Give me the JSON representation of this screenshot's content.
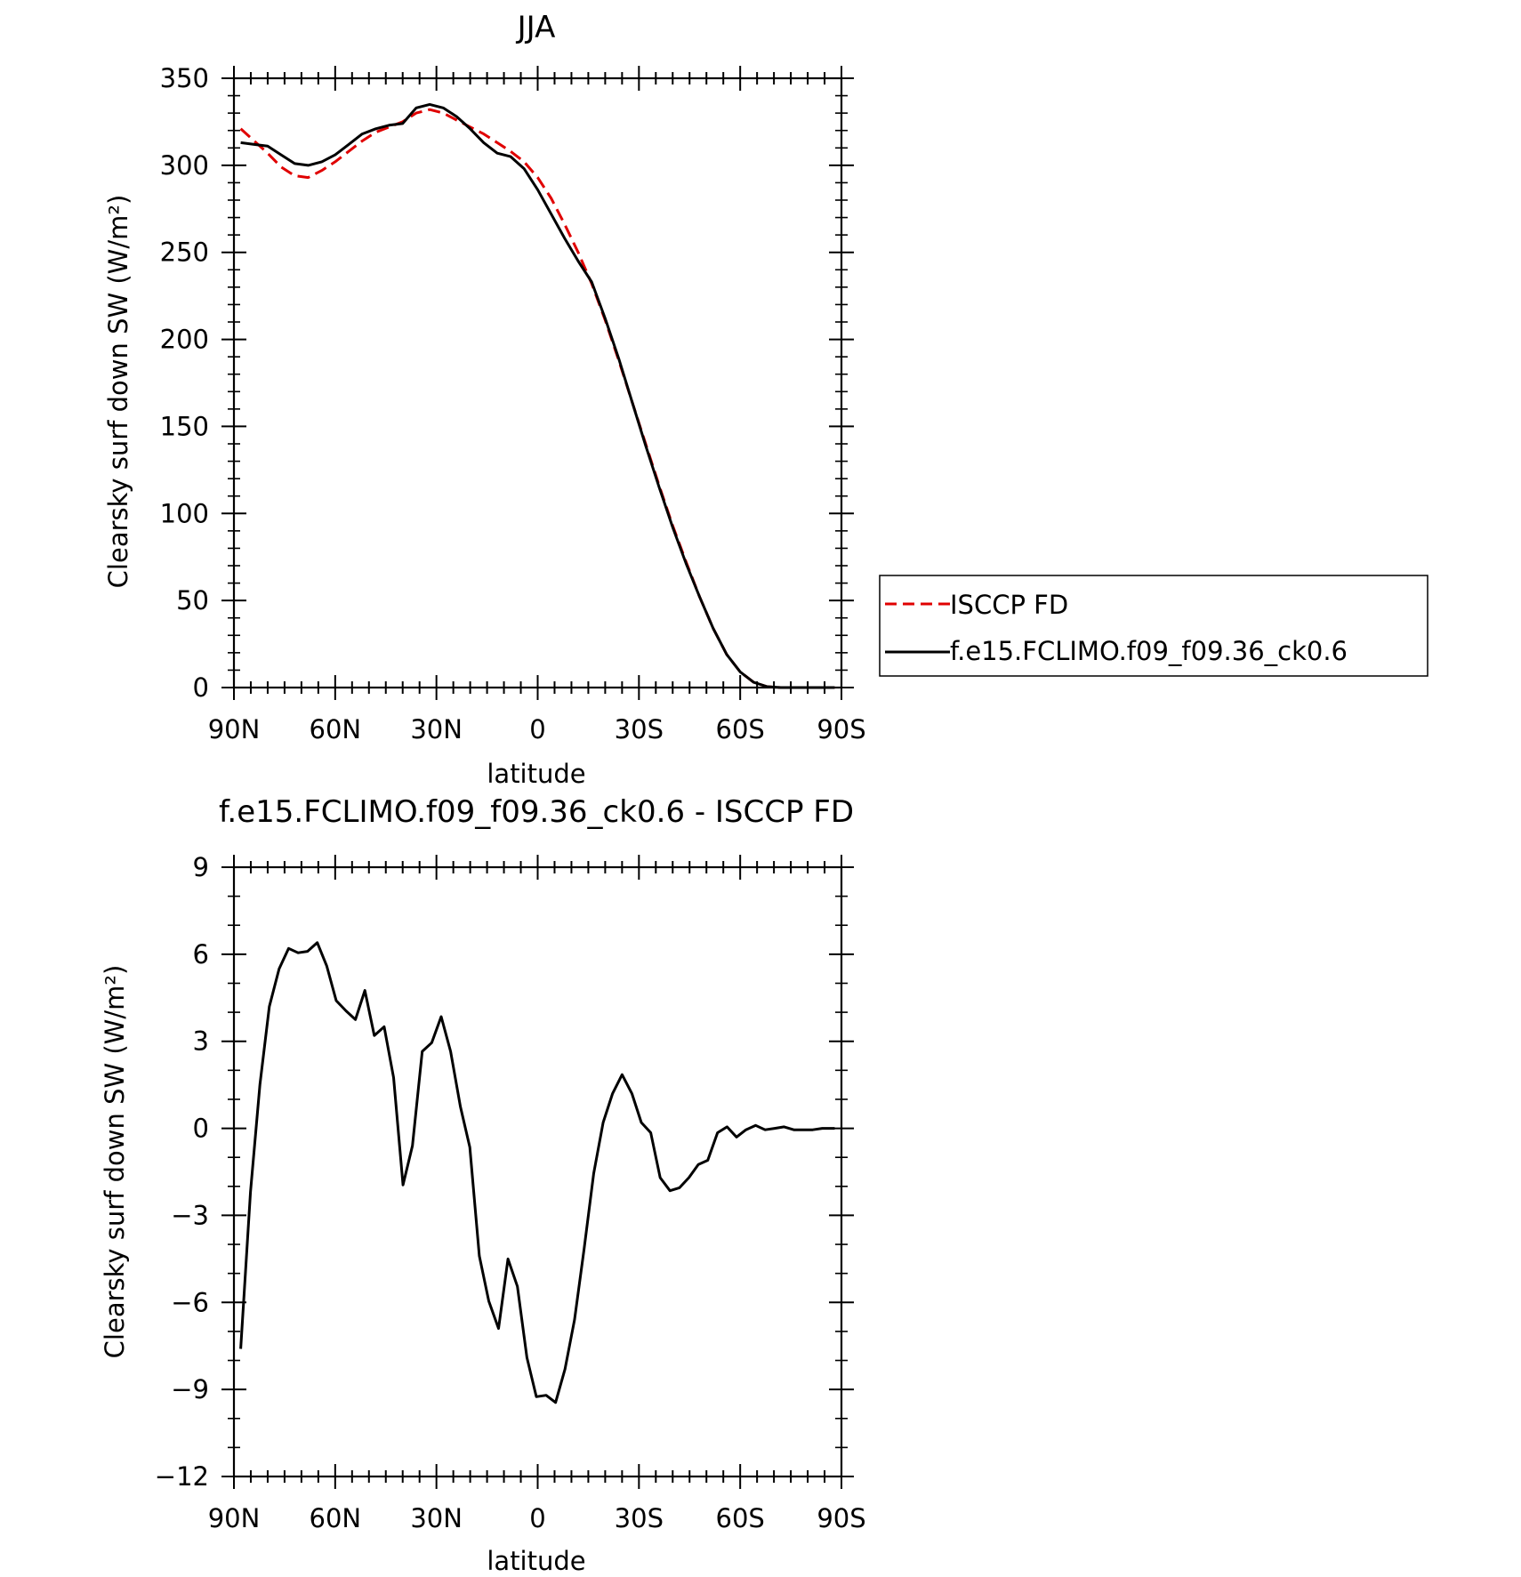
{
  "chart_data": [
    {
      "type": "line",
      "title": "JJA",
      "xlabel": "latitude",
      "ylabel": "Clearsky surf down SW (W/m²)",
      "xlim": [
        90,
        -90
      ],
      "ylim": [
        0,
        350
      ],
      "x_tick_labels": [
        "90N",
        "60N",
        "30N",
        "0",
        "30S",
        "60S",
        "90S"
      ],
      "x_tick_values": [
        90,
        60,
        30,
        0,
        -30,
        -60,
        -90
      ],
      "y_tick_values": [
        0,
        50,
        100,
        150,
        200,
        250,
        300,
        350
      ],
      "legend": "right",
      "series": [
        {
          "name": "ISCCP FD",
          "color": "#e00000",
          "dash": true,
          "points": [
            [
              88,
              321
            ],
            [
              84,
              314
            ],
            [
              80,
              307
            ],
            [
              76,
              299
            ],
            [
              72,
              294
            ],
            [
              68,
              293
            ],
            [
              64,
              297
            ],
            [
              60,
              302
            ],
            [
              56,
              308
            ],
            [
              52,
              314
            ],
            [
              48,
              319
            ],
            [
              44,
              322
            ],
            [
              40,
              325
            ],
            [
              36,
              330
            ],
            [
              32,
              332
            ],
            [
              28,
              330
            ],
            [
              24,
              326
            ],
            [
              20,
              322
            ],
            [
              16,
              318
            ],
            [
              12,
              313
            ],
            [
              8,
              308
            ],
            [
              4,
              302
            ],
            [
              0,
              293
            ],
            [
              -4,
              281
            ],
            [
              -8,
              266
            ],
            [
              -12,
              250
            ],
            [
              -16,
              232
            ],
            [
              -20,
              211
            ],
            [
              -24,
              188
            ],
            [
              -28,
              164
            ],
            [
              -32,
              140
            ],
            [
              -36,
              116
            ],
            [
              -40,
              93
            ],
            [
              -44,
              72
            ],
            [
              -48,
              52
            ],
            [
              -52,
              34
            ],
            [
              -56,
              19
            ],
            [
              -60,
              9
            ],
            [
              -64,
              3
            ],
            [
              -68,
              0.5
            ],
            [
              -72,
              0
            ],
            [
              -76,
              0
            ],
            [
              -80,
              0
            ],
            [
              -84,
              0
            ],
            [
              -88,
              0
            ]
          ]
        },
        {
          "name": "f.e15.FCLIMO.f09_f09.36_ck0.6",
          "color": "#000000",
          "dash": false,
          "points": [
            [
              88,
              313
            ],
            [
              84,
              312
            ],
            [
              80,
              311
            ],
            [
              76,
              306
            ],
            [
              72,
              301
            ],
            [
              68,
              300
            ],
            [
              64,
              302
            ],
            [
              60,
              306
            ],
            [
              56,
              312
            ],
            [
              52,
              318
            ],
            [
              48,
              321
            ],
            [
              44,
              323
            ],
            [
              40,
              324
            ],
            [
              36,
              333
            ],
            [
              32,
              335
            ],
            [
              28,
              333
            ],
            [
              24,
              328
            ],
            [
              20,
              321
            ],
            [
              16,
              313
            ],
            [
              12,
              307
            ],
            [
              8,
              305
            ],
            [
              4,
              298
            ],
            [
              0,
              286
            ],
            [
              -4,
              272
            ],
            [
              -8,
              258
            ],
            [
              -12,
              245
            ],
            [
              -16,
              233
            ],
            [
              -20,
              212
            ],
            [
              -24,
              189
            ],
            [
              -28,
              164
            ],
            [
              -32,
              139
            ],
            [
              -36,
              115
            ],
            [
              -40,
              92
            ],
            [
              -44,
              71
            ],
            [
              -48,
              52
            ],
            [
              -52,
              34
            ],
            [
              -56,
              19
            ],
            [
              -60,
              9
            ],
            [
              -64,
              3
            ],
            [
              -68,
              0.5
            ],
            [
              -72,
              0
            ],
            [
              -76,
              0
            ],
            [
              -80,
              0
            ],
            [
              -84,
              0
            ],
            [
              -88,
              0
            ]
          ]
        }
      ]
    },
    {
      "type": "line",
      "title": "f.e15.FCLIMO.f09_f09.36_ck0.6 - ISCCP FD",
      "xlabel": "latitude",
      "ylabel": "Clearsky surf down SW (W/m²)",
      "xlim": [
        90,
        -90
      ],
      "ylim": [
        -12,
        9
      ],
      "x_tick_labels": [
        "90N",
        "60N",
        "30N",
        "0",
        "30S",
        "60S",
        "90S"
      ],
      "x_tick_values": [
        90,
        60,
        30,
        0,
        -30,
        -60,
        -90
      ],
      "y_tick_values": [
        -12,
        -9,
        -6,
        -3,
        0,
        3,
        6,
        9
      ],
      "series": [
        {
          "color": "#000000",
          "points": [
            [
              88,
              -7.6
            ],
            [
              85.1,
              -2.2
            ],
            [
              82.3,
              1.5
            ],
            [
              79.5,
              4.2
            ],
            [
              76.6,
              5.5
            ],
            [
              73.8,
              6.2
            ],
            [
              71,
              6.05
            ],
            [
              68.2,
              6.1
            ],
            [
              65.3,
              6.4
            ],
            [
              62.5,
              5.6
            ],
            [
              59.7,
              4.4
            ],
            [
              56.8,
              4.05
            ],
            [
              54,
              3.75
            ],
            [
              51.2,
              4.75
            ],
            [
              48.4,
              3.2
            ],
            [
              45.5,
              3.5
            ],
            [
              42.7,
              1.75
            ],
            [
              39.9,
              -1.95
            ],
            [
              37.1,
              -0.6
            ],
            [
              34.2,
              2.65
            ],
            [
              31.4,
              2.95
            ],
            [
              28.6,
              3.85
            ],
            [
              25.8,
              2.65
            ],
            [
              22.9,
              0.75
            ],
            [
              20.1,
              -0.65
            ],
            [
              17.3,
              -4.4
            ],
            [
              14.5,
              -5.95
            ],
            [
              11.6,
              -6.9
            ],
            [
              8.8,
              -4.5
            ],
            [
              6,
              -5.45
            ],
            [
              3.2,
              -7.9
            ],
            [
              0.4,
              -9.25
            ],
            [
              -2.5,
              -9.2
            ],
            [
              -5.3,
              -9.45
            ],
            [
              -8.1,
              -8.3
            ],
            [
              -10.9,
              -6.6
            ],
            [
              -13.7,
              -4.2
            ],
            [
              -16.6,
              -1.55
            ],
            [
              -19.4,
              0.2
            ],
            [
              -22.2,
              1.2
            ],
            [
              -25,
              1.85
            ],
            [
              -27.9,
              1.2
            ],
            [
              -30.7,
              0.2
            ],
            [
              -33.5,
              -0.15
            ],
            [
              -36.3,
              -1.7
            ],
            [
              -39.2,
              -2.15
            ],
            [
              -42,
              -2.05
            ],
            [
              -44.8,
              -1.7
            ],
            [
              -47.6,
              -1.25
            ],
            [
              -50.4,
              -1.1
            ],
            [
              -53.3,
              -0.15
            ],
            [
              -56.1,
              0.05
            ],
            [
              -58.9,
              -0.3
            ],
            [
              -61.7,
              -0.05
            ],
            [
              -64.6,
              0.1
            ],
            [
              -67.4,
              -0.05
            ],
            [
              -70.2,
              0
            ],
            [
              -73,
              0.05
            ],
            [
              -75.9,
              -0.05
            ],
            [
              -78.7,
              -0.05
            ],
            [
              -81.5,
              -0.05
            ],
            [
              -84.3,
              0
            ],
            [
              -87.2,
              0
            ],
            [
              -88,
              0
            ]
          ]
        }
      ]
    }
  ]
}
